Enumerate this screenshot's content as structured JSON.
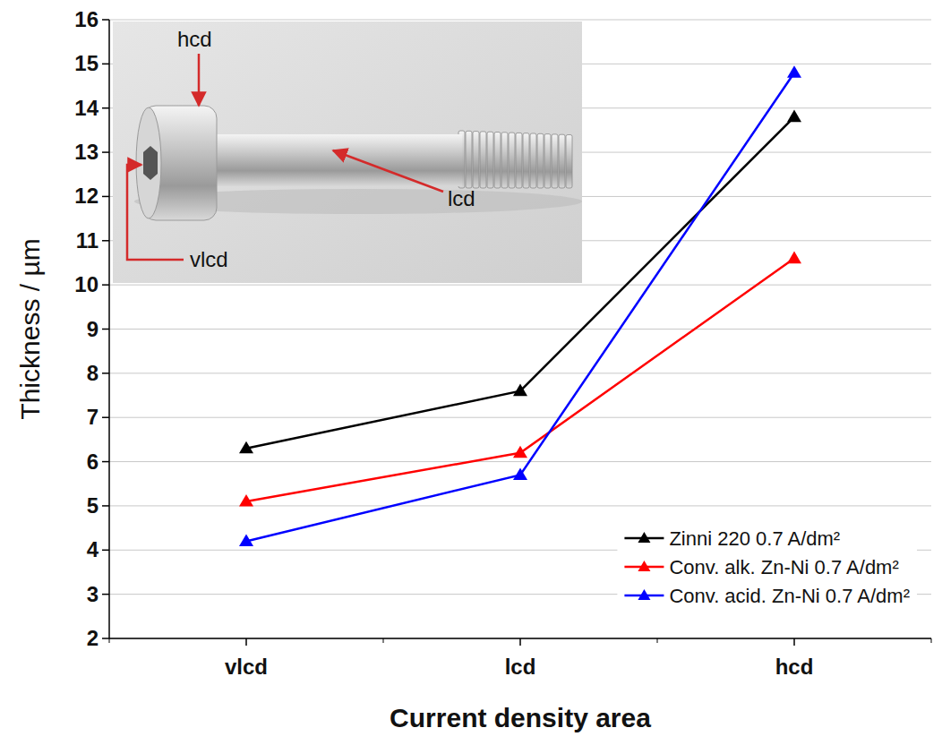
{
  "chart_data": {
    "type": "line",
    "x_label": "Current density area",
    "y_label": "Thickness / µm",
    "categories": [
      "vlcd",
      "lcd",
      "hcd"
    ],
    "series": [
      {
        "name": "Zinni 220 0.7 A/dm²",
        "color": "#000000",
        "values": [
          6.3,
          7.6,
          13.8
        ]
      },
      {
        "name": "Conv. alk. Zn-Ni 0.7 A/dm²",
        "color": "#ff0000",
        "values": [
          5.1,
          6.2,
          10.6
        ]
      },
      {
        "name": "Conv. acid. Zn-Ni 0.7 A/dm²",
        "color": "#0000ff",
        "values": [
          4.2,
          5.7,
          14.8
        ]
      }
    ],
    "ylim": [
      2,
      16
    ],
    "yticks": [
      2,
      3,
      4,
      5,
      6,
      7,
      8,
      9,
      10,
      11,
      12,
      13,
      14,
      15,
      16
    ],
    "grid": true,
    "legend": "bottom-right",
    "marker": "triangle",
    "line_style": "solid",
    "annotations": [
      "hcd",
      "lcd",
      "vlcd"
    ]
  }
}
